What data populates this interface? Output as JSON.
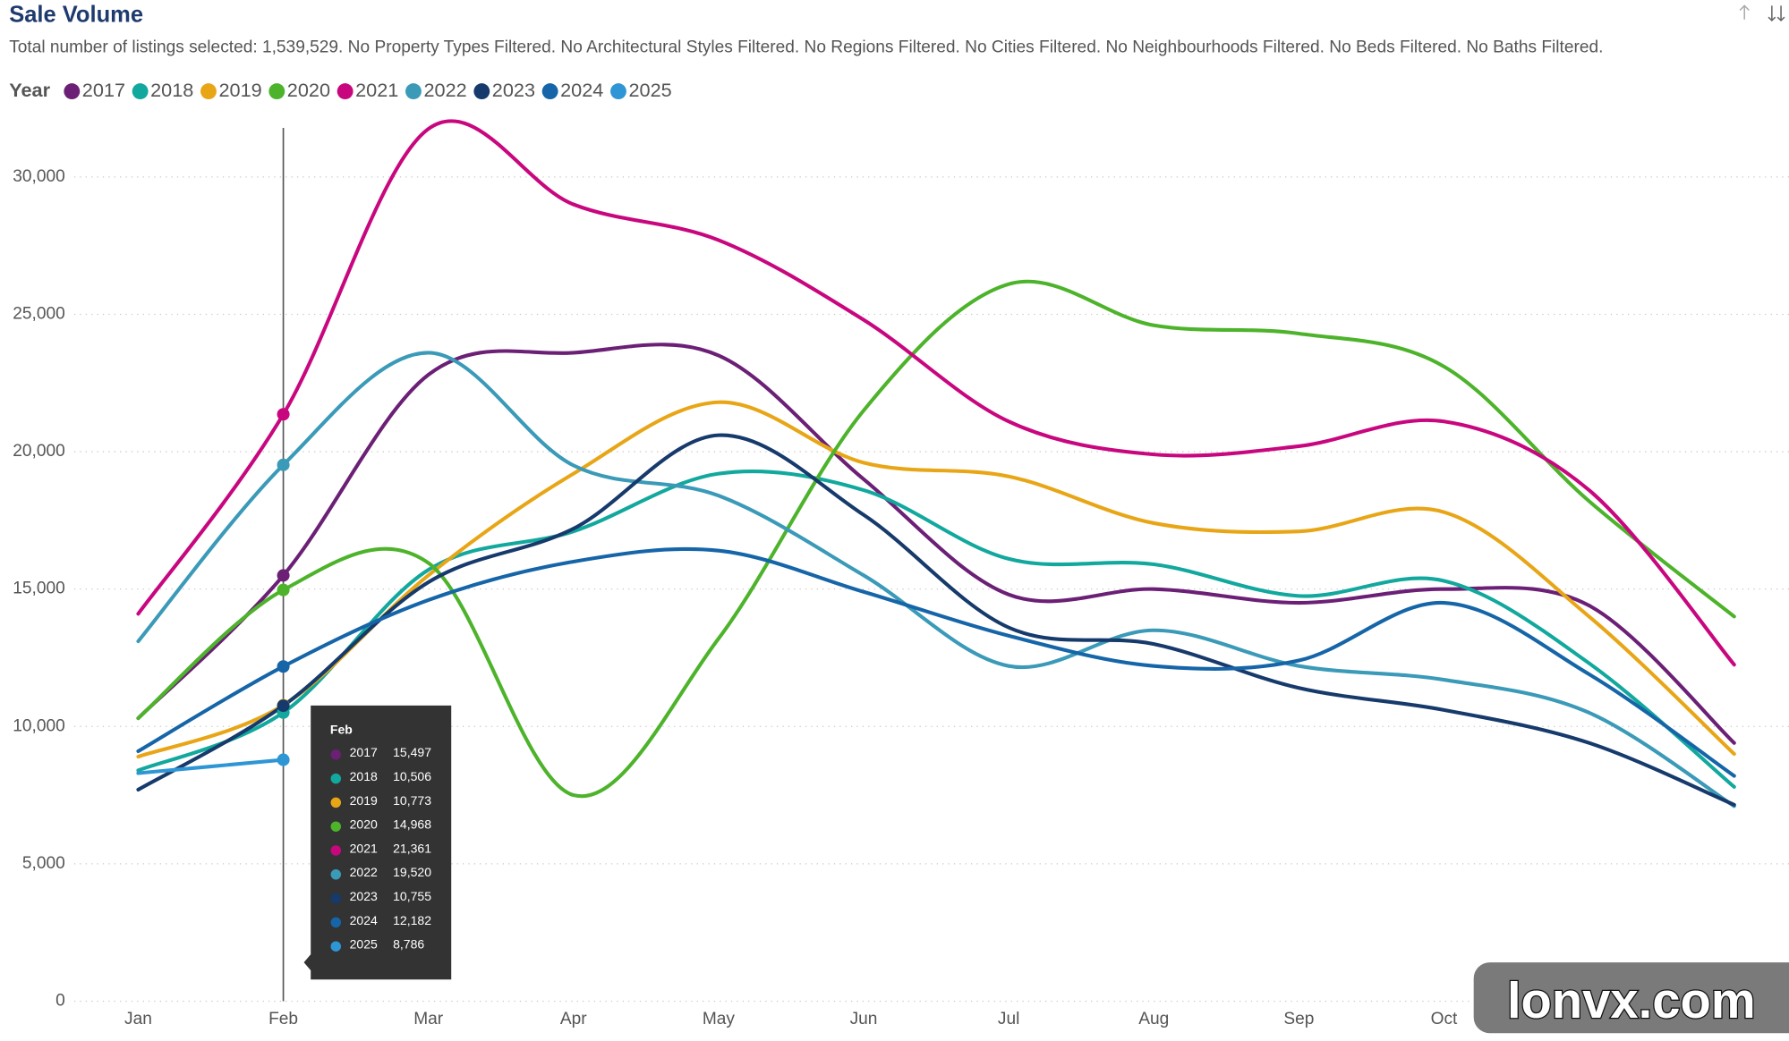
{
  "chart_data": {
    "type": "line",
    "title": "Sale Volume",
    "subtitle": "Total number of listings selected: 1,539,529. No Property Types Filtered. No Architectural Styles Filtered. No Regions Filtered. No Cities Filtered. No Neighbourhoods Filtered. No Beds Filtered. No Baths Filtered.",
    "legend_title": "Year",
    "watermark": "lonvx.com",
    "categories": [
      "Jan",
      "Feb",
      "Mar",
      "Apr",
      "May",
      "Jun",
      "Jul",
      "Aug",
      "Sep",
      "Oct",
      null,
      null
    ],
    "ylim": [
      0,
      32000
    ],
    "yticks": [
      0,
      {
        "value": 5000,
        "label": "5,000"
      },
      {
        "value": 10000,
        "label": "10,000"
      },
      {
        "value": 15000,
        "label": "15,000"
      },
      {
        "value": 20000,
        "label": "20,000"
      },
      {
        "value": 25000,
        "label": "25,000"
      },
      {
        "value": 30000,
        "label": "30,000"
      }
    ],
    "grid": true,
    "legend": "top",
    "series": [
      {
        "name": "2017",
        "color": "#6b2076",
        "values": [
          10300,
          15497,
          22800,
          23600,
          23500,
          19000,
          14800,
          15000,
          14500,
          15000,
          14400,
          9400
        ],
        "value_labels": [
          null,
          "15,497",
          null,
          null,
          null,
          null,
          null,
          null,
          null,
          null,
          null,
          null
        ]
      },
      {
        "name": "2018",
        "color": "#12a89d",
        "values": [
          8400,
          10506,
          15700,
          17100,
          19200,
          18600,
          16100,
          15900,
          14750,
          15300,
          12300,
          7800
        ],
        "value_labels": [
          null,
          "10,506",
          null,
          null,
          null,
          null,
          null,
          null,
          null,
          null,
          null,
          null
        ]
      },
      {
        "name": "2019",
        "color": "#e8a617",
        "values": [
          8900,
          10773,
          15500,
          19200,
          21800,
          19600,
          19100,
          17400,
          17100,
          17800,
          14000,
          9000
        ],
        "value_labels": [
          null,
          "10,773",
          null,
          null,
          null,
          null,
          null,
          null,
          null,
          null,
          null,
          null
        ]
      },
      {
        "name": "2020",
        "color": "#4db32b",
        "values": [
          10300,
          14968,
          15950,
          7500,
          13200,
          21500,
          26100,
          24600,
          24300,
          23100,
          18200,
          14000
        ],
        "value_labels": [
          null,
          "14,968",
          null,
          null,
          null,
          null,
          null,
          null,
          null,
          null,
          null,
          null
        ]
      },
      {
        "name": "2021",
        "color": "#c8077f",
        "values": [
          14100,
          21361,
          31750,
          29000,
          27700,
          24800,
          21100,
          19900,
          20200,
          21100,
          18600,
          12250
        ],
        "value_labels": [
          null,
          "21,361",
          null,
          null,
          null,
          null,
          null,
          null,
          null,
          null,
          null,
          null
        ]
      },
      {
        "name": "2022",
        "color": "#3a9ab8",
        "values": [
          13100,
          19520,
          23600,
          19500,
          18400,
          15500,
          12200,
          13500,
          12200,
          11700,
          10500,
          7100
        ],
        "value_labels": [
          null,
          "19,520",
          null,
          null,
          null,
          null,
          null,
          null,
          null,
          null,
          null,
          null
        ]
      },
      {
        "name": "2023",
        "color": "#163a6b",
        "values": [
          7700,
          10755,
          15250,
          17200,
          20600,
          17700,
          13600,
          13000,
          11400,
          10600,
          9400,
          7150
        ],
        "value_labels": [
          null,
          "10,755",
          null,
          null,
          null,
          null,
          null,
          null,
          null,
          null,
          null,
          null
        ]
      },
      {
        "name": "2024",
        "color": "#1565a8",
        "values": [
          9100,
          12182,
          14600,
          16000,
          16400,
          14900,
          13300,
          12200,
          12400,
          14500,
          11900,
          8200
        ],
        "value_labels": [
          null,
          "12,182",
          null,
          null,
          null,
          null,
          null,
          null,
          null,
          null,
          null,
          null
        ]
      },
      {
        "name": "2025",
        "color": "#2e96d4",
        "values": [
          8300,
          8786,
          null,
          null,
          null,
          null,
          null,
          null,
          null,
          null,
          null,
          null
        ],
        "value_labels": [
          null,
          "8,786",
          null,
          null,
          null,
          null,
          null,
          null,
          null,
          null,
          null,
          null
        ]
      }
    ]
  }
}
